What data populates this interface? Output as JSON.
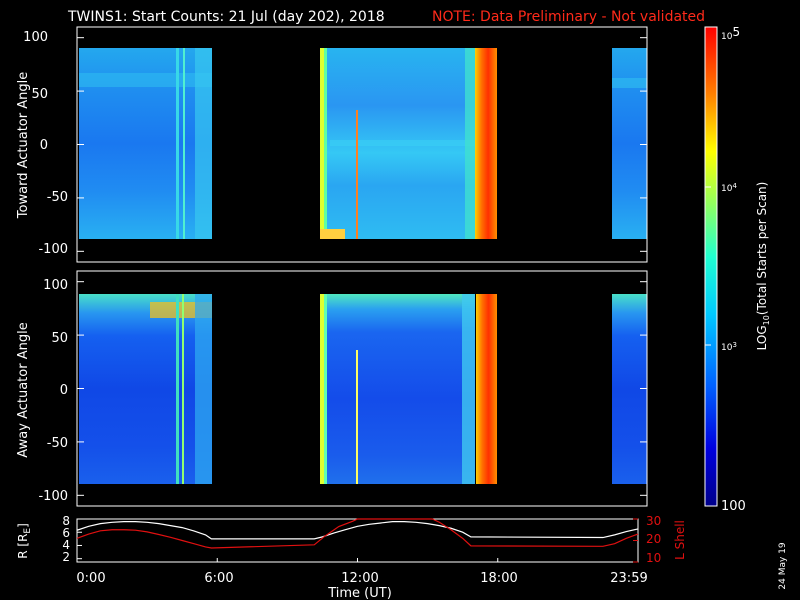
{
  "header": {
    "title": "TWINS1: Start Counts: 21 Jul (day 202), 2018",
    "note": "NOTE: Data Preliminary - Not validated"
  },
  "stamp": "24 May 19",
  "colors": {
    "background": "#000000",
    "axis": "#ffffff",
    "note": "#ff2a1a",
    "lshell": "#e01010",
    "r_line": "#ffffff"
  },
  "colorbar": {
    "label_main": "LOG",
    "label_sub": "10",
    "label_rest": "(Total Starts per Scan)",
    "tick_100": "100",
    "tick_1e3_base": "10",
    "tick_1e3_exp": "3",
    "tick_1e4_base": "10",
    "tick_1e4_exp": "4",
    "tick_1e5_base": "10",
    "tick_1e5_exp": "5",
    "min": 100,
    "max": 100000
  },
  "chart_data": [
    {
      "type": "heatmap",
      "name": "toward",
      "ylabel": "Toward Actuator Angle",
      "ylim": [
        -110,
        110
      ],
      "yticks": [
        "100",
        "50",
        "0",
        "-50",
        "-100"
      ],
      "xlim_hours": [
        0,
        24
      ],
      "data_intervals_hours": [
        [
          0.0,
          5.75
        ],
        [
          10.15,
          16.85
        ],
        [
          22.5,
          24.0
        ]
      ],
      "angle_range": [
        -88,
        90
      ]
    },
    {
      "type": "heatmap",
      "name": "away",
      "ylabel": "Away Actuator Angle",
      "ylim": [
        -110,
        110
      ],
      "yticks": [
        "100",
        "50",
        "0",
        "-50",
        "-100"
      ],
      "xlim_hours": [
        0,
        24
      ],
      "data_intervals_hours": [
        [
          0.0,
          5.75
        ],
        [
          10.15,
          16.85
        ],
        [
          22.5,
          24.0
        ]
      ],
      "angle_range": [
        -88,
        90
      ]
    },
    {
      "type": "line",
      "name": "ephemeris",
      "ylabel_left": "R [R",
      "ylabel_left_sub": "E",
      "ylabel_left_close": "]",
      "ylabel_right": "L Shell",
      "xlabel": "Time (UT)",
      "ylim_left": [
        1.5,
        8
      ],
      "ylim_right": [
        10,
        30
      ],
      "yticks_left": [
        "8",
        "6",
        "4",
        "2"
      ],
      "yticks_right": [
        "30",
        "20",
        "10"
      ],
      "xticks": [
        "0:00",
        "6:00",
        "12:00",
        "18:00",
        "23:59"
      ],
      "series": [
        {
          "name": "R",
          "x": [
            0,
            0.5,
            1,
            1.5,
            2,
            2.5,
            3,
            3.5,
            4,
            4.5,
            5,
            5.5,
            5.75,
            10.15,
            10.5,
            11,
            11.5,
            12,
            12.5,
            13,
            13.5,
            14,
            14.5,
            15,
            15.5,
            16,
            16.5,
            16.85,
            22.5,
            23,
            23.5,
            24
          ],
          "values": [
            6.3,
            6.9,
            7.3,
            7.5,
            7.6,
            7.6,
            7.5,
            7.3,
            7.0,
            6.7,
            6.2,
            5.6,
            5.0,
            5.0,
            5.3,
            5.9,
            6.4,
            6.9,
            7.2,
            7.4,
            7.6,
            7.6,
            7.5,
            7.3,
            7.0,
            6.6,
            6.0,
            5.3,
            5.2,
            5.6,
            6.1,
            6.5
          ]
        },
        {
          "name": "L Shell",
          "x": [
            0,
            0.5,
            1,
            1.5,
            2,
            2.5,
            3,
            3.5,
            4,
            4.5,
            5,
            5.5,
            5.75,
            10.15,
            10.6,
            11.2,
            11.8,
            12.0,
            15.2,
            15.5,
            16.0,
            16.5,
            16.85,
            22.5,
            23,
            23.5,
            24
          ],
          "values": [
            21,
            23,
            24.5,
            25,
            25,
            24.8,
            24,
            22.8,
            21.5,
            20,
            18.5,
            17,
            16.5,
            18,
            22,
            26.5,
            29,
            31,
            31,
            28.5,
            25,
            21,
            17.5,
            17.3,
            18.5,
            21,
            23
          ]
        }
      ]
    }
  ]
}
